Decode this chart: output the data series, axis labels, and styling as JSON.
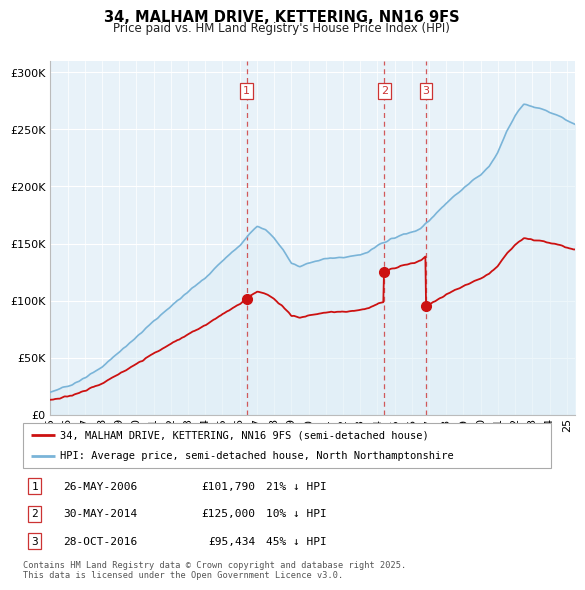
{
  "title": "34, MALHAM DRIVE, KETTERING, NN16 9FS",
  "subtitle": "Price paid vs. HM Land Registry's House Price Index (HPI)",
  "ylim": [
    0,
    310000
  ],
  "yticks": [
    0,
    50000,
    100000,
    150000,
    200000,
    250000,
    300000
  ],
  "hpi_color": "#7ab4d8",
  "hpi_fill": "#ddeef7",
  "price_color": "#cc1111",
  "vline_color": "#cc3333",
  "background_color": "#ffffff",
  "chart_bg": "#e8f2f9",
  "grid_color": "#ffffff",
  "transactions": [
    {
      "label": "1",
      "date": "26-MAY-2006",
      "price": 101790,
      "price_str": "£101,790",
      "pct": "21% ↓ HPI",
      "x": 2006.4
    },
    {
      "label": "2",
      "date": "30-MAY-2014",
      "price": 125000,
      "price_str": "£125,000",
      "pct": "10% ↓ HPI",
      "x": 2014.4
    },
    {
      "label": "3",
      "date": "28-OCT-2016",
      "price": 95434,
      "price_str": "£95,434",
      "pct": "45% ↓ HPI",
      "x": 2016.83
    }
  ],
  "legend_entries": [
    "34, MALHAM DRIVE, KETTERING, NN16 9FS (semi-detached house)",
    "HPI: Average price, semi-detached house, North Northamptonshire"
  ],
  "footer": "Contains HM Land Registry data © Crown copyright and database right 2025.\nThis data is licensed under the Open Government Licence v3.0.",
  "x_start": 1995,
  "x_end": 2025.5,
  "xtick_years": [
    1995,
    1996,
    1997,
    1998,
    1999,
    2000,
    2001,
    2002,
    2003,
    2004,
    2005,
    2006,
    2007,
    2008,
    2009,
    2010,
    2011,
    2012,
    2013,
    2014,
    2015,
    2016,
    2017,
    2018,
    2019,
    2020,
    2021,
    2022,
    2023,
    2024,
    2025
  ]
}
